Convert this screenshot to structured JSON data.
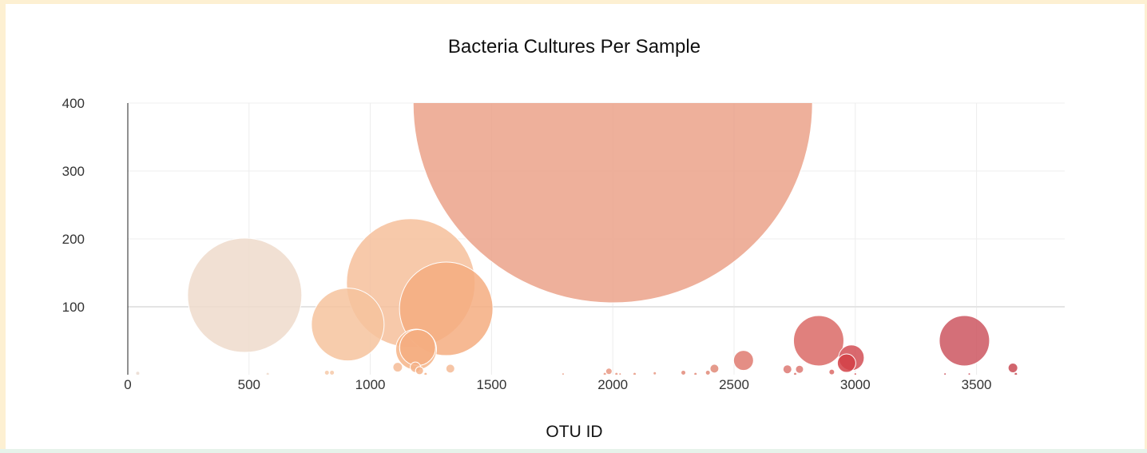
{
  "chart_data": {
    "type": "scatter",
    "title": "Bacteria Cultures Per Sample",
    "xlabel": "OTU ID",
    "ylabel": "",
    "xlim": [
      -30,
      3930
    ],
    "ylim": [
      0,
      400
    ],
    "x_ticks": [
      0,
      500,
      1000,
      1500,
      2000,
      2500,
      3000,
      3500
    ],
    "y_ticks": [
      100,
      200,
      300,
      400
    ],
    "grid": true,
    "legend": "none",
    "points": [
      {
        "x": 2000,
        "y": 400,
        "size": 500,
        "color": "#eba289"
      },
      {
        "x": 1167,
        "y": 135,
        "size": 161,
        "color": "#f6c09b"
      },
      {
        "x": 482,
        "y": 117,
        "size": 143,
        "color": "#eedacb"
      },
      {
        "x": 1313,
        "y": 97,
        "size": 117,
        "color": "#f4ad80"
      },
      {
        "x": 907,
        "y": 74,
        "size": 91,
        "color": "#f6c39e"
      },
      {
        "x": 1189,
        "y": 37,
        "size": 51,
        "color": "#f6b487"
      },
      {
        "x": 1195,
        "y": 40,
        "size": 45,
        "color": "#f4ad80"
      },
      {
        "x": 2849,
        "y": 50,
        "size": 63,
        "color": "#da6a66"
      },
      {
        "x": 3450,
        "y": 50,
        "size": 63,
        "color": "#cc5660"
      },
      {
        "x": 2984,
        "y": 25,
        "size": 32,
        "color": "#d24f55"
      },
      {
        "x": 2964,
        "y": 17,
        "size": 23,
        "color": "#d24146"
      },
      {
        "x": 2539,
        "y": 21,
        "size": 25,
        "color": "#df7a70"
      },
      {
        "x": 3650,
        "y": 10,
        "size": 12,
        "color": "#c94a54"
      },
      {
        "x": 2419,
        "y": 9,
        "size": 11,
        "color": "#e08a78"
      },
      {
        "x": 2720,
        "y": 8,
        "size": 11,
        "color": "#dd7973"
      },
      {
        "x": 2770,
        "y": 8,
        "size": 10,
        "color": "#dd7973"
      },
      {
        "x": 1113,
        "y": 11,
        "size": 12,
        "color": "#f4bb96"
      },
      {
        "x": 1330,
        "y": 9,
        "size": 11,
        "color": "#f4bb96"
      },
      {
        "x": 1186,
        "y": 11,
        "size": 13,
        "color": "#f4b38a"
      },
      {
        "x": 1203,
        "y": 6,
        "size": 10,
        "color": "#f4b38a"
      },
      {
        "x": 1984,
        "y": 5,
        "size": 8,
        "color": "#e89883"
      },
      {
        "x": 2291,
        "y": 3,
        "size": 6,
        "color": "#e28a79"
      },
      {
        "x": 2903,
        "y": 4,
        "size": 7,
        "color": "#da6a66"
      },
      {
        "x": 821,
        "y": 3,
        "size": 6,
        "color": "#f6c9a8"
      },
      {
        "x": 842,
        "y": 3,
        "size": 6,
        "color": "#f6c9a8"
      },
      {
        "x": 2392,
        "y": 3,
        "size": 6,
        "color": "#e08a78"
      },
      {
        "x": 1967,
        "y": 1,
        "size": 4,
        "color": "#e89883"
      },
      {
        "x": 2015,
        "y": 1,
        "size": 4,
        "color": "#e89883"
      },
      {
        "x": 2090,
        "y": 1,
        "size": 4,
        "color": "#e89883"
      },
      {
        "x": 2173,
        "y": 2,
        "size": 4,
        "color": "#e89883"
      },
      {
        "x": 2341,
        "y": 1,
        "size": 4,
        "color": "#e28a79"
      },
      {
        "x": 2752,
        "y": 1,
        "size": 4,
        "color": "#dd7973"
      },
      {
        "x": 3662,
        "y": 1,
        "size": 4,
        "color": "#c94a54"
      },
      {
        "x": 3370,
        "y": 1,
        "size": 3,
        "color": "#cc5660"
      },
      {
        "x": 3470,
        "y": 1,
        "size": 3,
        "color": "#cc5660"
      },
      {
        "x": 1795,
        "y": 1,
        "size": 3,
        "color": "#eba289"
      },
      {
        "x": 1228,
        "y": 1,
        "size": 4,
        "color": "#f4b38a"
      },
      {
        "x": 41,
        "y": 2,
        "size": 5,
        "color": "#eadad0"
      },
      {
        "x": 577,
        "y": 1,
        "size": 4,
        "color": "#eedacb"
      },
      {
        "x": 2030,
        "y": 1,
        "size": 3,
        "color": "#e89883"
      },
      {
        "x": 3000,
        "y": 1,
        "size": 3,
        "color": "#d24f55"
      }
    ]
  }
}
